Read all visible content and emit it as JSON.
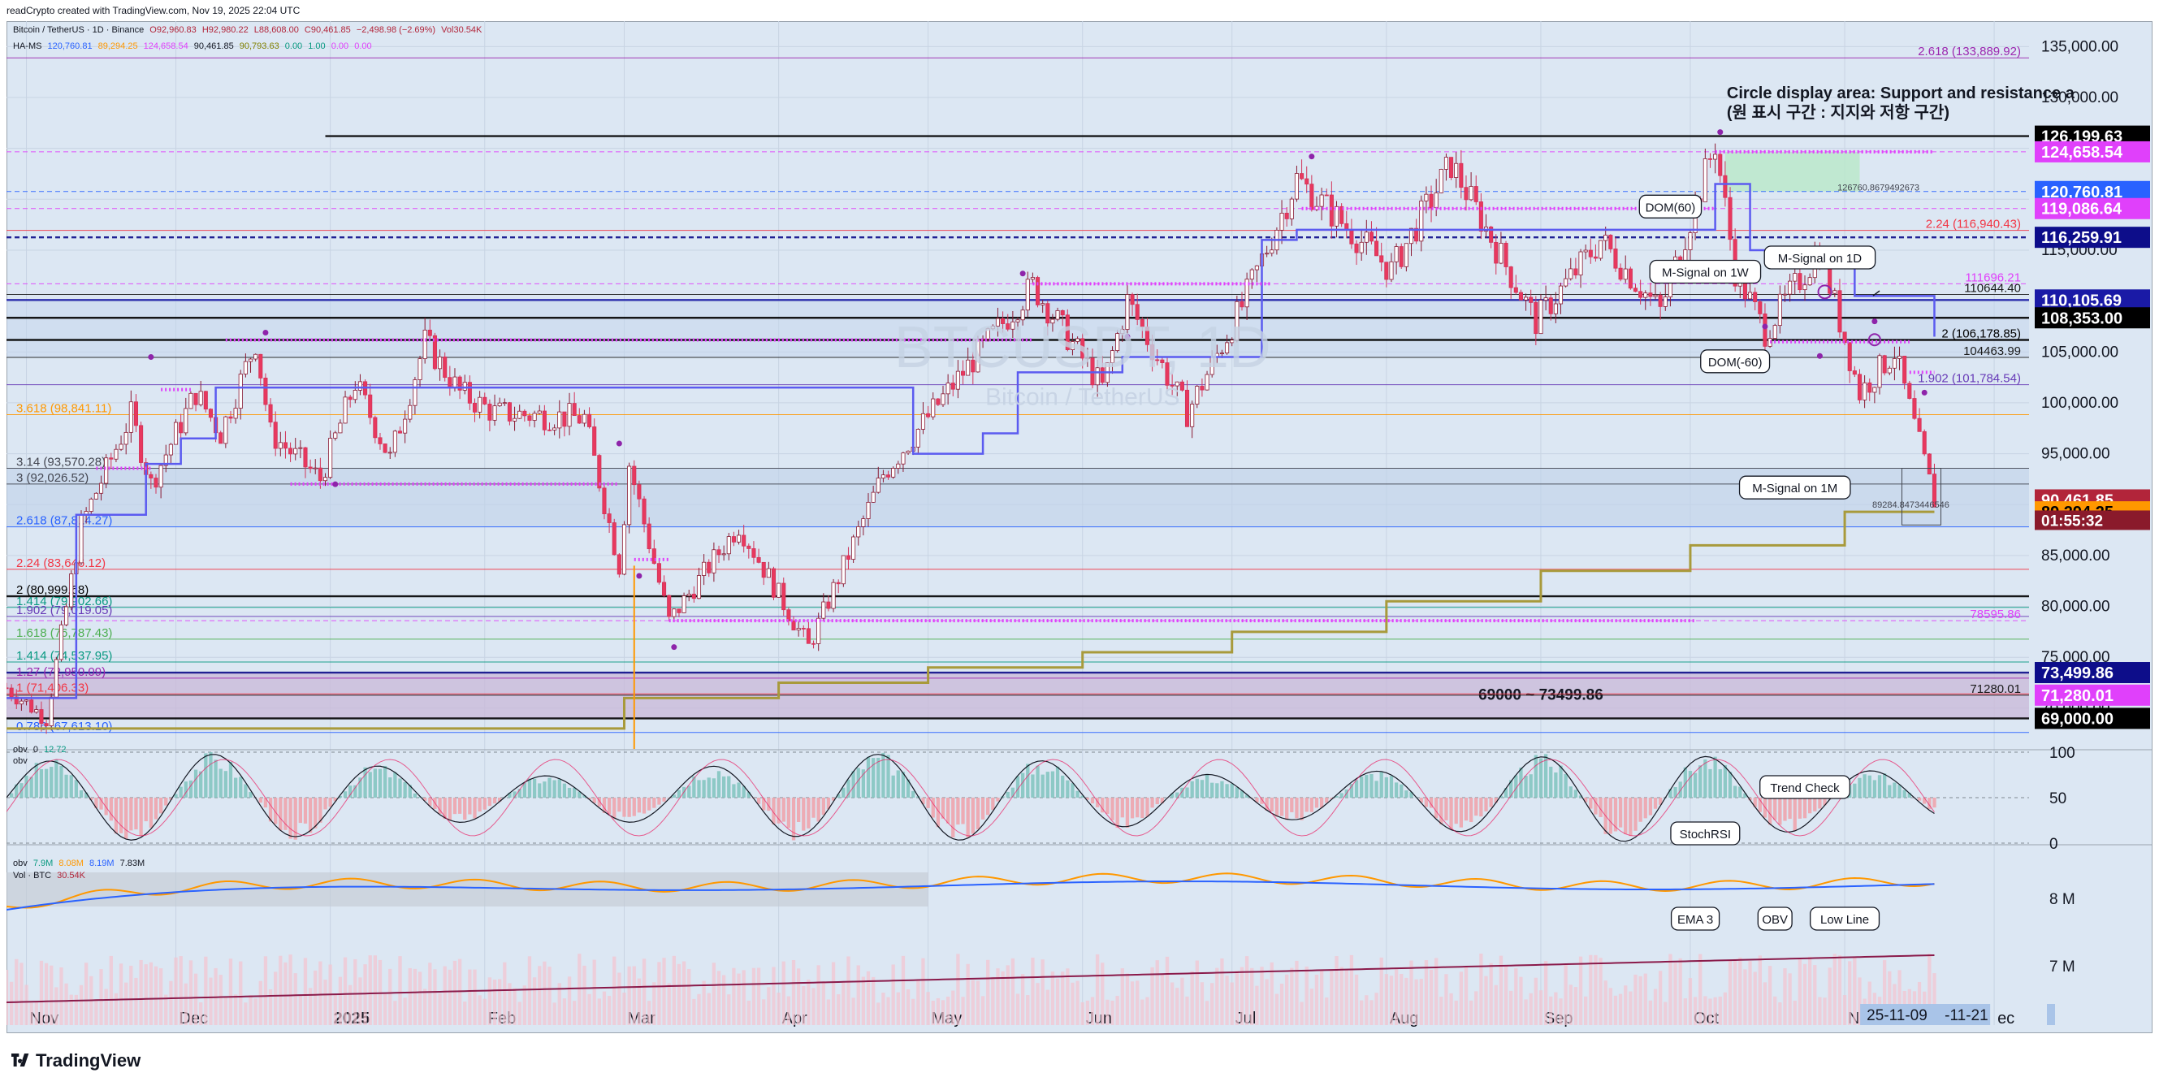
{
  "topbar": {
    "text": "readCrypto created with TradingView.com, Nov 19, 2025 22:04 UTC"
  },
  "brand": {
    "name": "TradingView"
  },
  "header": {
    "symbol": "Bitcoin / TetherUS · 1D · Binance",
    "open": "O92,960.83",
    "high": "H92,980.22",
    "low": "L88,608.00",
    "close": "C90,461.85",
    "change": "−2,498.98 (−2.69%)",
    "vol": "Vol30.54K",
    "hams": "HA-MS",
    "hams_values": [
      "120,760.81",
      "89,294.25",
      "124,658.54",
      "90,461.85",
      "90,793.63",
      "0.00",
      "1.00",
      "0.00",
      "0.00"
    ],
    "obv_label": "obv",
    "obv_values": [
      "0",
      "12.72"
    ],
    "obv_sub": "obv",
    "obv2_label": "obv",
    "obv2_values": [
      "7.9M",
      "8.08M",
      "8.19M",
      "7.83M"
    ],
    "vol_label": "Vol · BTC",
    "vol_value": "30.54K"
  },
  "watermark": {
    "symbol": "BTCUSDT, 1D",
    "name": "Bitcoin / TetherUS"
  },
  "chart_data": {
    "type": "candlestick",
    "title": "Bitcoin / TetherUS · 1D · Binance",
    "x_range": [
      "2024-10-28",
      "2025-12-08"
    ],
    "y_range": [
      66000,
      137500
    ],
    "x_ticks": [
      "Nov",
      "Dec",
      "2025",
      "Feb",
      "Mar",
      "Apr",
      "May",
      "Jun",
      "Jul",
      "Aug",
      "Sep",
      "Oct",
      "N",
      "ec"
    ],
    "y_ticks": [
      "135,000.00",
      "130,000.00",
      "125,000.00",
      "120,000.00",
      "115,000.00",
      "110,000.00",
      "105,000.00",
      "100,000.00",
      "95,000.00",
      "90,000.00",
      "85,000.00",
      "80,000.00",
      "75,000.00",
      "70,000.00"
    ],
    "close_path": [
      [
        "2024-10-28",
        72000
      ],
      [
        "2024-11-05",
        69000
      ],
      [
        "2024-11-12",
        88000
      ],
      [
        "2024-11-22",
        98800
      ],
      [
        "2024-11-26",
        92000
      ],
      [
        "2024-12-05",
        101000
      ],
      [
        "2024-12-10",
        97000
      ],
      [
        "2024-12-17",
        106000
      ],
      [
        "2024-12-20",
        97000
      ],
      [
        "2024-12-30",
        92500
      ],
      [
        "2025-01-06",
        102000
      ],
      [
        "2025-01-13",
        94500
      ],
      [
        "2025-01-20",
        106000
      ],
      [
        "2025-01-27",
        101000
      ],
      [
        "2025-02-03",
        99000
      ],
      [
        "2025-02-21",
        98500
      ],
      [
        "2025-02-28",
        84000
      ],
      [
        "2025-03-02",
        94000
      ],
      [
        "2025-03-10",
        78500
      ],
      [
        "2025-03-24",
        88000
      ],
      [
        "2025-04-07",
        76000
      ],
      [
        "2025-04-22",
        93000
      ],
      [
        "2025-05-08",
        103000
      ],
      [
        "2025-05-22",
        111500
      ],
      [
        "2025-06-05",
        101500
      ],
      [
        "2025-06-10",
        110000
      ],
      [
        "2025-06-22",
        99000
      ],
      [
        "2025-07-03",
        109500
      ],
      [
        "2025-07-14",
        122000
      ],
      [
        "2025-08-02",
        113000
      ],
      [
        "2025-08-14",
        123500
      ],
      [
        "2025-08-31",
        108000
      ],
      [
        "2025-09-13",
        116000
      ],
      [
        "2025-09-25",
        109000
      ],
      [
        "2025-10-06",
        125500
      ],
      [
        "2025-10-10",
        113000
      ],
      [
        "2025-10-16",
        107000
      ],
      [
        "2025-10-27",
        115000
      ],
      [
        "2025-11-04",
        101000
      ],
      [
        "2025-11-11",
        105000
      ],
      [
        "2025-11-19",
        90461.85
      ]
    ],
    "m_signal_1w": [
      [
        "2024-10-28",
        71000
      ],
      [
        "2024-11-11",
        71000
      ],
      [
        "2024-11-11",
        89000
      ],
      [
        "2024-11-25",
        94000
      ],
      [
        "2024-12-02",
        96500
      ],
      [
        "2024-12-09",
        101500
      ],
      [
        "2025-02-28",
        101500
      ],
      [
        "2025-03-30",
        101500
      ],
      [
        "2025-04-14",
        101500
      ],
      [
        "2025-04-28",
        101500
      ],
      [
        "2025-04-28",
        95000
      ],
      [
        "2025-05-12",
        97000
      ],
      [
        "2025-05-19",
        103000
      ],
      [
        "2025-06-09",
        104500
      ],
      [
        "2025-06-30",
        104500
      ],
      [
        "2025-07-07",
        116000
      ],
      [
        "2025-07-14",
        117000
      ],
      [
        "2025-09-29",
        117000
      ],
      [
        "2025-10-06",
        121500
      ],
      [
        "2025-10-13",
        115000
      ],
      [
        "2025-11-03",
        110500
      ],
      [
        "2025-11-19",
        106500
      ]
    ],
    "m_signal_1m": [
      [
        "2024-10-28",
        68000
      ],
      [
        "2024-12-31",
        68000
      ],
      [
        "2025-02-01",
        68000
      ],
      [
        "2025-02-28",
        68000
      ],
      [
        "2025-03-01",
        71000
      ],
      [
        "2025-04-01",
        72500
      ],
      [
        "2025-05-01",
        74000
      ],
      [
        "2025-06-01",
        75500
      ],
      [
        "2025-07-01",
        77500
      ],
      [
        "2025-08-01",
        80500
      ],
      [
        "2025-09-01",
        83500
      ],
      [
        "2025-10-01",
        86000
      ],
      [
        "2025-11-01",
        89294.25
      ],
      [
        "2025-11-19",
        89294.25
      ]
    ],
    "horizontal_levels": [
      {
        "price": 133889.92,
        "label": "2.618 (133,889.92)",
        "color": "#9c27b0"
      },
      {
        "price": 126199.63,
        "label": "",
        "color": "#000000"
      },
      {
        "price": 124658.54,
        "label": "",
        "color": "#e040fb"
      },
      {
        "price": 120760.81,
        "label": "",
        "color": "#2962ff"
      },
      {
        "price": 119086.64,
        "label": "",
        "color": "#e040fb"
      },
      {
        "price": 116940.43,
        "label": "2.24 (116,940.43)",
        "color": "#f23645"
      },
      {
        "price": 116259.91,
        "label": "",
        "color": "#0d0d8a"
      },
      {
        "price": 111696.21,
        "label": "111696.21",
        "color": "#e040fb"
      },
      {
        "price": 110644.4,
        "label": "110644.40",
        "color": "#1a1a1a"
      },
      {
        "price": 110105.69,
        "label": "",
        "color": "#1a1aa6"
      },
      {
        "price": 108353.0,
        "label": "",
        "color": "#000000"
      },
      {
        "price": 106178.85,
        "label": "2 (106,178.85)",
        "color": "#000000"
      },
      {
        "price": 104463.99,
        "label": "104463.99",
        "color": "#1a1a1a"
      },
      {
        "price": 101784.54,
        "label": "1.902 (101,784.54)",
        "color": "#673ab7"
      },
      {
        "price": 98841.11,
        "label": "3.618 (98,841.11)",
        "color": "#ff9800"
      },
      {
        "price": 93570.28,
        "label": "3.14 (93,570.28)",
        "color": "#434651"
      },
      {
        "price": 92026.52,
        "label": "3 (92,026.52)",
        "color": "#434651"
      },
      {
        "price": 87814.27,
        "label": "2.618 (87,814.27)",
        "color": "#2962ff"
      },
      {
        "price": 83646.12,
        "label": "2.24 (83,646.12)",
        "color": "#f23645"
      },
      {
        "price": 80999.68,
        "label": "2 (80,999.68)",
        "color": "#000000"
      },
      {
        "price": 79902.66,
        "label": "1.414 (79,902.66)",
        "color": "#089981"
      },
      {
        "price": 79019.05,
        "label": "1.902 (79,019.05)",
        "color": "#673ab7"
      },
      {
        "price": 78595.86,
        "label": "78595.86",
        "color": "#e040fb"
      },
      {
        "price": 76787.43,
        "label": "1.618 (76,787.43)",
        "color": "#4caf50"
      },
      {
        "price": 74537.95,
        "label": "1.414 (74,537.95)",
        "color": "#089981"
      },
      {
        "price": 73499.86,
        "label": "",
        "color": "#0d0d8a"
      },
      {
        "price": 72950.09,
        "label": "1.27 (72,950.09)",
        "color": "#9c27b0"
      },
      {
        "price": 71406.33,
        "label": "1 (71,406.33)",
        "color": "#f23645"
      },
      {
        "price": 71280.01,
        "label": "71280.01",
        "color": "#1a1a1a"
      },
      {
        "price": 69000.0,
        "label": "",
        "color": "#000000"
      },
      {
        "price": 67613.1,
        "label": "0.786 (67,613.10)",
        "color": "#2962ff"
      }
    ],
    "price_tags": [
      {
        "price": 126199.63,
        "label": "126,199.63",
        "bg": "#000000",
        "fg": "#ffffff"
      },
      {
        "price": 124658.54,
        "label": "124,658.54",
        "bg": "#e040fb",
        "fg": "#ffffff"
      },
      {
        "price": 120760.81,
        "label": "120,760.81",
        "bg": "#2962ff",
        "fg": "#ffffff"
      },
      {
        "price": 119086.64,
        "label": "119,086.64",
        "bg": "#e040fb",
        "fg": "#ffffff"
      },
      {
        "price": 116259.91,
        "label": "116,259.91",
        "bg": "#0d0d8a",
        "fg": "#ffffff"
      },
      {
        "price": 110105.69,
        "label": "110,105.69",
        "bg": "#1a1aa6",
        "fg": "#ffffff"
      },
      {
        "price": 108353.0,
        "label": "108,353.00",
        "bg": "#000000",
        "fg": "#ffffff"
      },
      {
        "price": 90461.85,
        "label": "90,461.85",
        "bg": "#b2253a",
        "fg": "#ffffff"
      },
      {
        "price": 89294.25,
        "label": "89,294.25",
        "bg": "#ff9800",
        "fg": "#000000"
      },
      {
        "price": 73499.86,
        "label": "73,499.86",
        "bg": "#0d0d8a",
        "fg": "#ffffff"
      },
      {
        "price": 71280.01,
        "label": "71,280.01",
        "bg": "#e040fb",
        "fg": "#ffffff"
      },
      {
        "price": 69000.0,
        "label": "69,000.00",
        "bg": "#000000",
        "fg": "#ffffff"
      }
    ],
    "countdown": "01:55:32",
    "zone_label": "69000 ~ 73499.86",
    "annotations": {
      "circle_title": "Circle display area: Support and resistance a",
      "circle_korean": "(원 표시 구간 : 지지와 저항 구간)",
      "dom60": "DOM(60)",
      "dom_neg60": "DOM(-60)",
      "msignal_1d": "M-Signal on 1D",
      "msignal_1w": "M-Signal on 1W",
      "msignal_1m": "M-Signal on 1M",
      "trend_check": "Trend Check",
      "stochrsi": "StochRSI",
      "ema3": "EMA 3",
      "obv": "OBV",
      "low_line": "Low Line",
      "small_label_1": "126760.8679492673",
      "small_label_2": "89284.8473446546"
    },
    "stoch_ticks": [
      "100",
      "50",
      "0"
    ],
    "obv_ticks": [
      "8 M",
      "7 M"
    ],
    "date_range_tag": [
      "25-11-09",
      "-11-21"
    ]
  },
  "colors": {
    "up": "#26a69a",
    "down": "#ef5350",
    "bg": "#dce7f3",
    "m1w": "#5b5bf0",
    "m1m": "#a89a3b",
    "dom": "#e040fb"
  }
}
